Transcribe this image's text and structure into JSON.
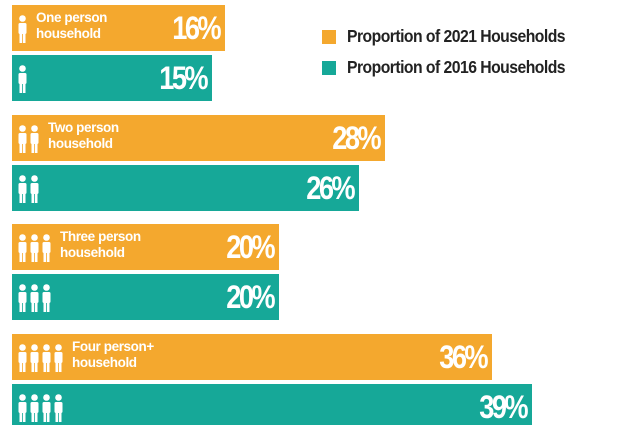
{
  "chart_data": {
    "type": "bar",
    "orientation": "horizontal",
    "categories": [
      "One person household",
      "Two person household",
      "Three person household",
      "Four person+ household"
    ],
    "series": [
      {
        "name": "Proportion of 2021 Households",
        "color": "#f4a82e",
        "values": [
          16,
          28,
          20,
          36
        ],
        "value_labels": [
          "16%",
          "28%",
          "20%",
          "36%"
        ]
      },
      {
        "name": "Proportion of 2016 Households",
        "color": "#16a898",
        "values": [
          15,
          26,
          20,
          39
        ],
        "value_labels": [
          "15%",
          "26%",
          "20%",
          "39%"
        ]
      }
    ],
    "legend": "top-right"
  }
}
